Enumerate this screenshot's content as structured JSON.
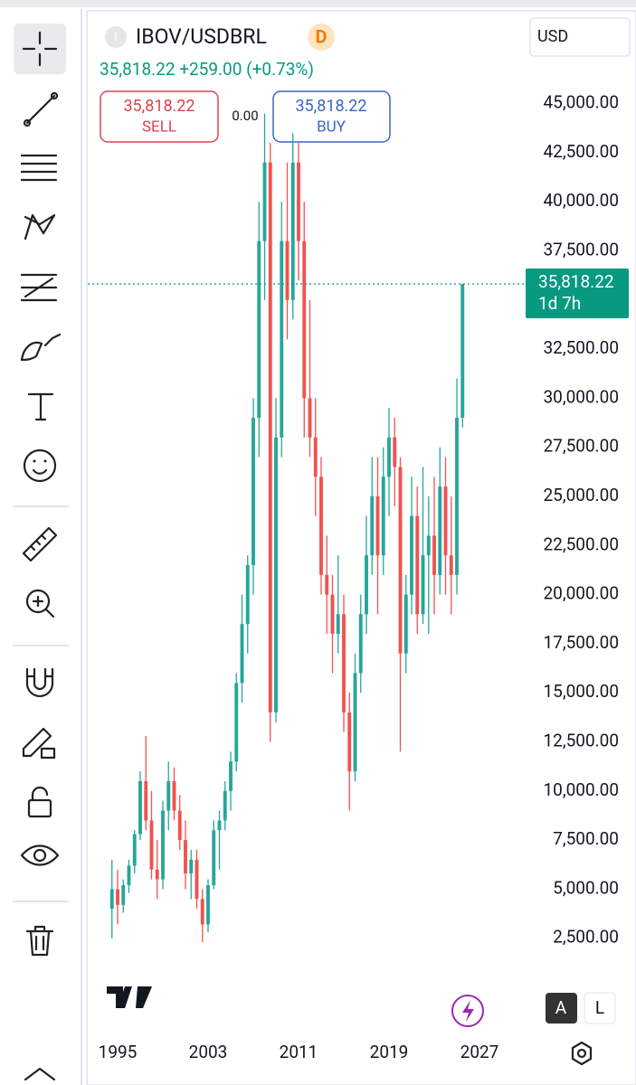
{
  "header": {
    "symbol_icon": "I",
    "symbol": "IBOV/USDBRL",
    "interval": "D",
    "currency": "USD",
    "quote": "35,818.22 +259.00 (+0.73%)"
  },
  "trade": {
    "sell_price": "35,818.22",
    "sell": "SELL",
    "spread": "0.00",
    "buy_price": "35,818.22",
    "buy": "BUY"
  },
  "price_tag": {
    "price": "35,818.22",
    "countdown": "1d 7h"
  },
  "footer": {
    "auto": "A",
    "log": "L"
  },
  "chart_data": {
    "type": "candlestick",
    "up_color": "#26a69a",
    "down_color": "#ef5350",
    "x": [
      1994.5,
      1995,
      1995.5,
      1996,
      1996.5,
      1997,
      1997.5,
      1998,
      1998.5,
      1999,
      1999.5,
      2000,
      2000.5,
      2001,
      2001.5,
      2002,
      2002.5,
      2003,
      2003.5,
      2004,
      2004.5,
      2005,
      2005.5,
      2006,
      2006.5,
      2007,
      2007.5,
      2008,
      2008.5,
      2009,
      2009.5,
      2010,
      2010.5,
      2011,
      2011.5,
      2012,
      2012.5,
      2013,
      2013.5,
      2014,
      2014.5,
      2015,
      2015.5,
      2016,
      2016.5,
      2017,
      2017.5,
      2018,
      2018.5,
      2019,
      2019.5,
      2020,
      2020.5,
      2021,
      2021.5,
      2022,
      2022.5,
      2023,
      2023.5,
      2024,
      2024.5,
      2025,
      2025.5
    ],
    "open": [
      4000,
      5000,
      4200,
      5200,
      6200,
      7800,
      10500,
      8500,
      6000,
      5500,
      9000,
      10500,
      9000,
      7500,
      5800,
      6500,
      4500,
      3200,
      5200,
      8000,
      8500,
      10000,
      11500,
      15500,
      18500,
      21500,
      29000,
      38000,
      42000,
      14000,
      28000,
      38000,
      35000,
      42000,
      38000,
      30000,
      28000,
      26000,
      21000,
      20000,
      18000,
      19000,
      14000,
      11000,
      16000,
      19000,
      22000,
      25000,
      22000,
      26000,
      28000,
      26500,
      17000,
      20000,
      24000,
      19000,
      22000,
      23000,
      21000,
      25500,
      22000,
      21000,
      29000
    ],
    "high": [
      6500,
      6000,
      5500,
      6500,
      8000,
      11000,
      12800,
      10000,
      7500,
      9500,
      11500,
      11200,
      9800,
      8500,
      7000,
      7000,
      5000,
      5500,
      8500,
      9000,
      10500,
      12000,
      16000,
      20000,
      22000,
      30000,
      40000,
      44500,
      43000,
      30000,
      40000,
      42000,
      43500,
      43000,
      40000,
      35000,
      30000,
      27000,
      23000,
      21000,
      22000,
      20000,
      15000,
      17000,
      20000,
      24000,
      27000,
      27000,
      27500,
      29500,
      29000,
      27000,
      21000,
      26000,
      25500,
      26500,
      25000,
      26000,
      27500,
      27000,
      25000,
      31000,
      35818.22
    ],
    "low": [
      2500,
      3200,
      3800,
      4800,
      5800,
      7500,
      8000,
      5500,
      4500,
      5000,
      8000,
      8500,
      7000,
      5000,
      4500,
      4000,
      2300,
      2800,
      5000,
      6000,
      8000,
      9000,
      11000,
      14500,
      17000,
      20000,
      27000,
      35000,
      12500,
      13500,
      27000,
      33000,
      34000,
      36000,
      28000,
      27000,
      24000,
      20000,
      18000,
      16000,
      17000,
      13000,
      9000,
      10500,
      15000,
      18000,
      21000,
      19000,
      21000,
      24000,
      24500,
      12000,
      16000,
      19000,
      18000,
      18500,
      18000,
      19000,
      20000,
      20000,
      19000,
      20000,
      28500
    ],
    "close": [
      5000,
      4200,
      5200,
      6200,
      7800,
      10500,
      8500,
      6000,
      5500,
      9000,
      10500,
      9000,
      7500,
      5800,
      6500,
      4500,
      3200,
      5200,
      8000,
      8500,
      10000,
      11500,
      15500,
      18500,
      21500,
      29000,
      38000,
      42000,
      14000,
      28000,
      38000,
      35000,
      42000,
      38000,
      30000,
      28000,
      26000,
      21000,
      20000,
      18000,
      19000,
      14000,
      11000,
      16000,
      19000,
      22000,
      25000,
      22000,
      26000,
      28000,
      26500,
      17000,
      20000,
      24000,
      19000,
      22000,
      23000,
      21000,
      25500,
      22000,
      21000,
      29000,
      35818.22
    ],
    "xlim": [
      1992.36,
      2031.0
    ],
    "xticks": [
      1995,
      2003,
      2011,
      2019,
      2027
    ],
    "ylim": [
      0,
      50000
    ],
    "yticks": [
      {
        "value": 2500,
        "label": "2,500.00"
      },
      {
        "value": 5000,
        "label": "5,000.00"
      },
      {
        "value": 7500,
        "label": "7,500.00"
      },
      {
        "value": 10000,
        "label": "10,000.00"
      },
      {
        "value": 12500,
        "label": "12,500.00"
      },
      {
        "value": 15000,
        "label": "15,000.00"
      },
      {
        "value": 17500,
        "label": "17,500.00"
      },
      {
        "value": 20000,
        "label": "20,000.00"
      },
      {
        "value": 22500,
        "label": "22,500.00"
      },
      {
        "value": 25000,
        "label": "25,000.00"
      },
      {
        "value": 27500,
        "label": "27,500.00"
      },
      {
        "value": 30000,
        "label": "30,000.00"
      },
      {
        "value": 32500,
        "label": "32,500.00"
      },
      {
        "value": 37500,
        "label": "37,500.00"
      },
      {
        "value": 40000,
        "label": "40,000.00"
      },
      {
        "value": 42500,
        "label": "42,500.00"
      },
      {
        "value": 45000,
        "label": "45,000.00"
      }
    ]
  }
}
